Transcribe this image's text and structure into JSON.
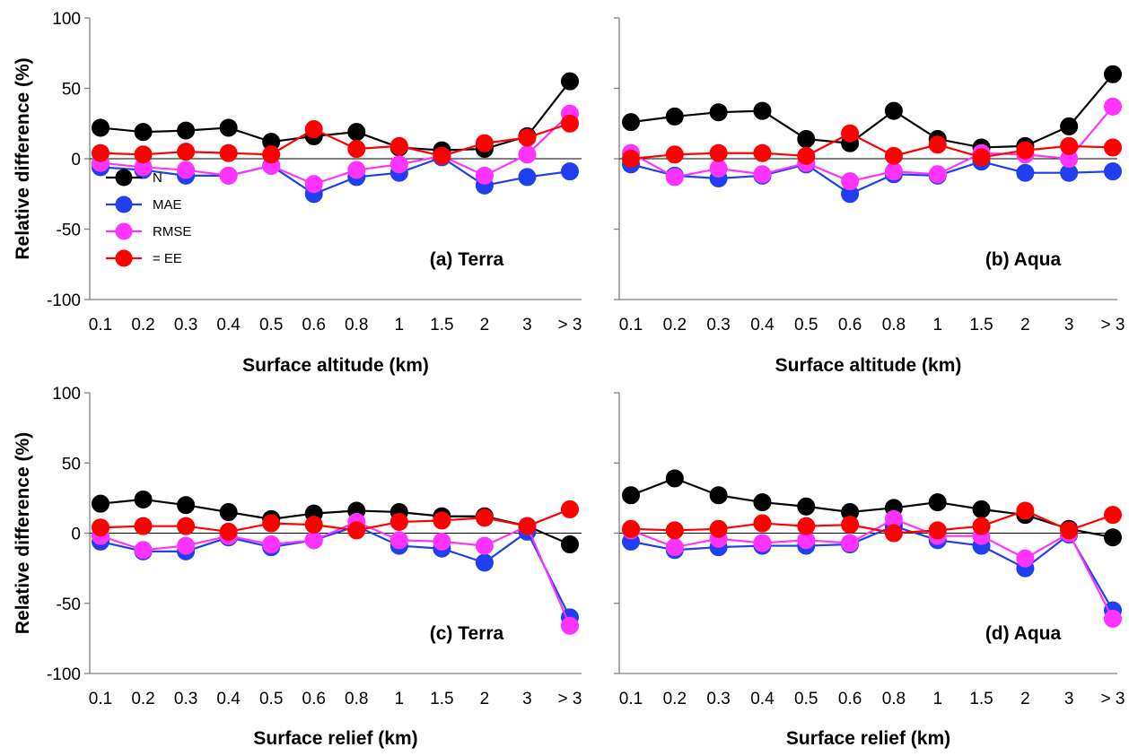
{
  "chart_data": [
    {
      "type": "line",
      "panel_label": "(a) Terra",
      "xlabel": "Surface altitude (km)",
      "ylabel": "Relative difference (%)",
      "categories": [
        "0.1",
        "0.2",
        "0.3",
        "0.4",
        "0.5",
        "0.6",
        "0.8",
        "1",
        "1.5",
        "2",
        "3",
        "> 3"
      ],
      "ylim": [
        -100,
        100
      ],
      "yticks": [
        "-100",
        "-50",
        "0",
        "50",
        "100"
      ],
      "series": [
        {
          "name": "N",
          "color": "#000000",
          "values": [
            22,
            19,
            20,
            22,
            12,
            16,
            19,
            8,
            6,
            7,
            16,
            55
          ]
        },
        {
          "name": "MAE",
          "color": "#1f3ff0",
          "values": [
            -6,
            -8,
            -12,
            -12,
            -5,
            -25,
            -13,
            -10,
            1,
            -19,
            -13,
            -9
          ]
        },
        {
          "name": "RMSE",
          "color": "#ff33ff",
          "values": [
            -3,
            -6,
            -8,
            -12,
            -5,
            -18,
            -8,
            -4,
            2,
            -12,
            3,
            32
          ]
        },
        {
          "name": "= EE",
          "color": "#ff0000",
          "values": [
            4,
            3,
            5,
            4,
            3,
            21,
            7,
            9,
            2,
            11,
            15,
            25
          ]
        }
      ],
      "legend": {
        "position": "lower-left",
        "entries": [
          "N",
          "MAE",
          "RMSE",
          "= EE"
        ]
      }
    },
    {
      "type": "line",
      "panel_label": "(b) Aqua",
      "xlabel": "Surface altitude (km)",
      "ylabel": "",
      "categories": [
        "0.1",
        "0.2",
        "0.3",
        "0.4",
        "0.5",
        "0.6",
        "0.8",
        "1",
        "1.5",
        "2",
        "3",
        "> 3"
      ],
      "ylim": [
        -100,
        100
      ],
      "yticks": [],
      "series": [
        {
          "name": "N",
          "color": "#000000",
          "values": [
            26,
            30,
            33,
            34,
            14,
            11,
            34,
            14,
            8,
            9,
            23,
            60
          ]
        },
        {
          "name": "MAE",
          "color": "#1f3ff0",
          "values": [
            -4,
            -12,
            -14,
            -12,
            -4,
            -25,
            -11,
            -12,
            -2,
            -10,
            -10,
            -9
          ]
        },
        {
          "name": "RMSE",
          "color": "#ff33ff",
          "values": [
            4,
            -13,
            -7,
            -11,
            -3,
            -16,
            -9,
            -11,
            4,
            3,
            0,
            37
          ]
        },
        {
          "name": "= EE",
          "color": "#ff0000",
          "values": [
            0,
            3,
            4,
            4,
            2,
            18,
            2,
            10,
            1,
            6,
            9,
            8
          ]
        }
      ]
    },
    {
      "type": "line",
      "panel_label": "(c) Terra",
      "xlabel": "Surface relief (km)",
      "ylabel": "Relative difference (%)",
      "categories": [
        "0.1",
        "0.2",
        "0.3",
        "0.4",
        "0.5",
        "0.6",
        "0.8",
        "1",
        "1.5",
        "2",
        "3",
        "> 3"
      ],
      "ylim": [
        -100,
        100
      ],
      "yticks": [
        "-100",
        "-50",
        "0",
        "50",
        "100"
      ],
      "series": [
        {
          "name": "N",
          "color": "#000000",
          "values": [
            21,
            24,
            20,
            15,
            10,
            14,
            16,
            15,
            12,
            12,
            5,
            -8
          ]
        },
        {
          "name": "MAE",
          "color": "#1f3ff0",
          "values": [
            -6,
            -13,
            -13,
            -3,
            -10,
            -5,
            5,
            -9,
            -11,
            -21,
            1,
            -60
          ]
        },
        {
          "name": "RMSE",
          "color": "#ff33ff",
          "values": [
            -2,
            -12,
            -9,
            -2,
            -8,
            -5,
            8,
            -5,
            -6,
            -9,
            5,
            -66
          ]
        },
        {
          "name": "= EE",
          "color": "#ff0000",
          "values": [
            4,
            5,
            5,
            1,
            7,
            6,
            2,
            8,
            9,
            11,
            5,
            17
          ]
        }
      ]
    },
    {
      "type": "line",
      "panel_label": "(d) Aqua",
      "xlabel": "Surface relief (km)",
      "ylabel": "",
      "categories": [
        "0.1",
        "0.2",
        "0.3",
        "0.4",
        "0.5",
        "0.6",
        "0.8",
        "1",
        "1.5",
        "2",
        "3",
        "> 3"
      ],
      "ylim": [
        -100,
        100
      ],
      "yticks": [],
      "series": [
        {
          "name": "N",
          "color": "#000000",
          "values": [
            27,
            39,
            27,
            22,
            19,
            15,
            18,
            22,
            17,
            13,
            3,
            -3
          ]
        },
        {
          "name": "MAE",
          "color": "#1f3ff0",
          "values": [
            -6,
            -12,
            -10,
            -9,
            -9,
            -8,
            5,
            -5,
            -9,
            -25,
            -1,
            -55
          ]
        },
        {
          "name": "RMSE",
          "color": "#ff33ff",
          "values": [
            2,
            -10,
            -4,
            -7,
            -5,
            -7,
            10,
            -2,
            -2,
            -18,
            0,
            -61
          ]
        },
        {
          "name": "= EE",
          "color": "#ff0000",
          "values": [
            3,
            2,
            3,
            7,
            5,
            6,
            0,
            2,
            5,
            16,
            2,
            13
          ]
        }
      ]
    }
  ]
}
